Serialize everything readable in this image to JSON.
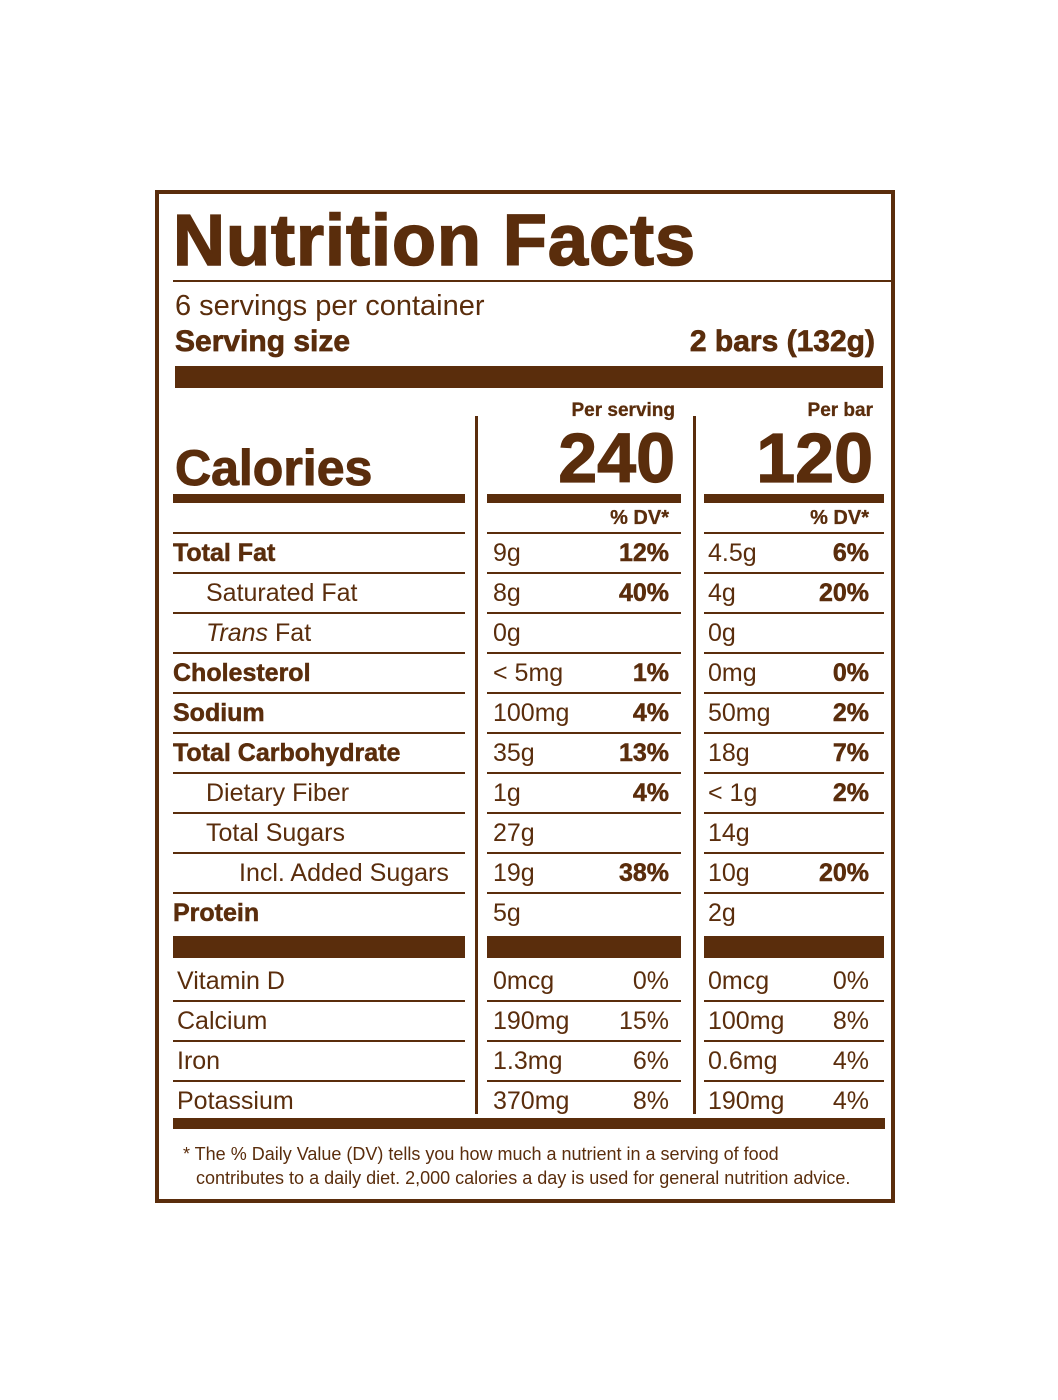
{
  "label": {
    "title": "Nutrition Facts",
    "servings_per_container": "6 servings per container",
    "serving_size_label": "Serving size",
    "serving_size_value": "2 bars (132g)",
    "col_per_serving": "Per serving",
    "col_per_bar": "Per bar",
    "calories_label": "Calories",
    "calories_per_serving": "240",
    "calories_per_bar": "120",
    "dv_header": "% DV*",
    "nutrients": [
      {
        "name": "Total Fat",
        "amt1": "9g",
        "dv1": "12%",
        "amt2": "4.5g",
        "dv2": "6%"
      },
      {
        "name": "Saturated Fat",
        "amt1": "8g",
        "dv1": "40%",
        "amt2": "4g",
        "dv2": "20%"
      },
      {
        "name_italic": "Trans",
        "name": "Fat",
        "amt1": "0g",
        "dv1": "",
        "amt2": "0g",
        "dv2": ""
      },
      {
        "name": "Cholesterol",
        "amt1": "< 5mg",
        "dv1": "1%",
        "amt2": "0mg",
        "dv2": "0%"
      },
      {
        "name": "Sodium",
        "amt1": "100mg",
        "dv1": "4%",
        "amt2": "50mg",
        "dv2": "2%"
      },
      {
        "name": "Total Carbohydrate",
        "amt1": "35g",
        "dv1": "13%",
        "amt2": "18g",
        "dv2": "7%"
      },
      {
        "name": "Dietary Fiber",
        "amt1": "1g",
        "dv1": "4%",
        "amt2": "< 1g",
        "dv2": "2%"
      },
      {
        "name": "Total Sugars",
        "amt1": "27g",
        "dv1": "",
        "amt2": "14g",
        "dv2": ""
      },
      {
        "name": "Incl. Added Sugars",
        "amt1": "19g",
        "dv1": "38%",
        "amt2": "10g",
        "dv2": "20%"
      },
      {
        "name": "Protein",
        "amt1": "5g",
        "dv1": "",
        "amt2": "2g",
        "dv2": ""
      }
    ],
    "vitamins": [
      {
        "name": "Vitamin D",
        "amt1": "0mcg",
        "dv1": "0%",
        "amt2": "0mcg",
        "dv2": "0%"
      },
      {
        "name": "Calcium",
        "amt1": "190mg",
        "dv1": "15%",
        "amt2": "100mg",
        "dv2": "8%"
      },
      {
        "name": "Iron",
        "amt1": "1.3mg",
        "dv1": "6%",
        "amt2": "0.6mg",
        "dv2": "4%"
      },
      {
        "name": "Potassium",
        "amt1": "370mg",
        "dv1": "8%",
        "amt2": "190mg",
        "dv2": "4%"
      }
    ],
    "footnote_line1": "* The % Daily Value (DV) tells you how much a nutrient in a serving of food",
    "footnote_line2": "contributes to a daily diet. 2,000 calories a day is used for general nutrition advice.",
    "colors": {
      "brown": "#5a2d0c",
      "background": "#ffffff"
    }
  }
}
